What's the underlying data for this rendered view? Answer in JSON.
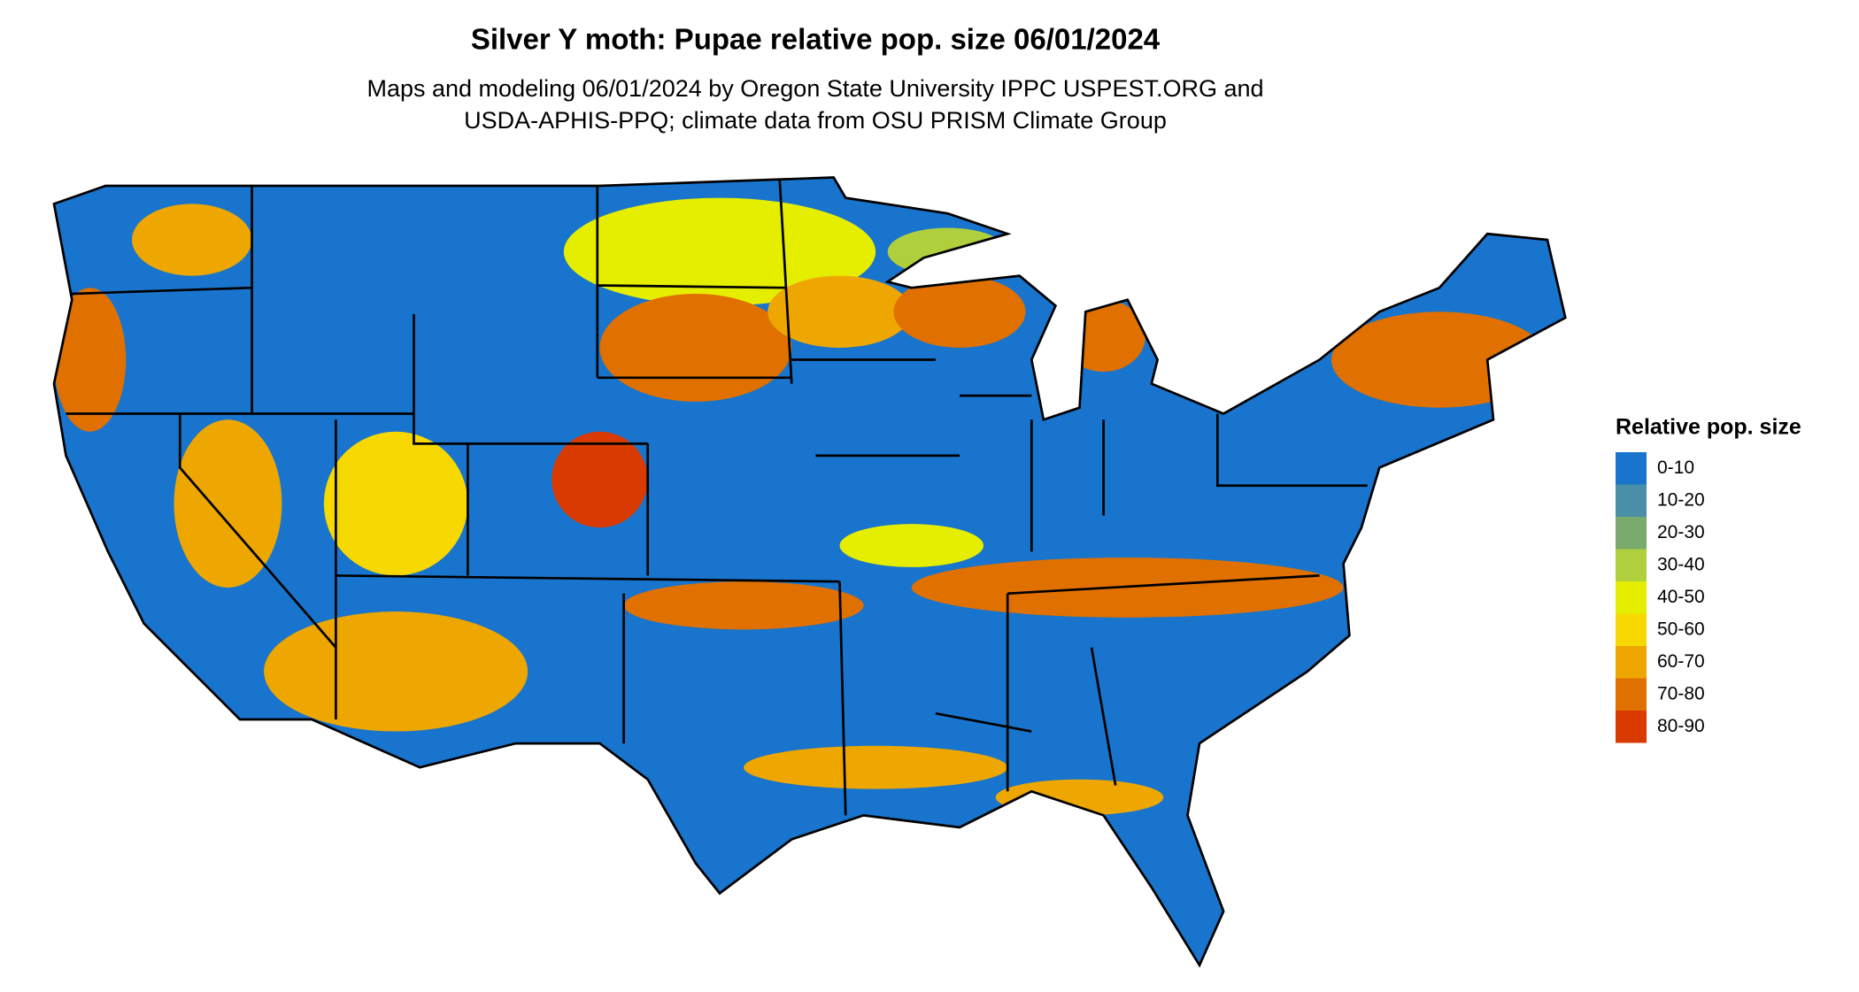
{
  "title": "Silver Y moth: Pupae relative pop. size 06/01/2024",
  "subtitle": [
    "Maps and modeling 06/01/2024 by Oregon State University IPPC USPEST.ORG and",
    "USDA-APHIS-PPQ; climate data from OSU PRISM Climate Group"
  ],
  "legend": {
    "title": "Relative pop. size",
    "items": [
      {
        "label": "0-10",
        "color": "#1874cd"
      },
      {
        "label": "10-20",
        "color": "#4a8fa8"
      },
      {
        "label": "20-30",
        "color": "#78aa6c"
      },
      {
        "label": "30-40",
        "color": "#b0cf3c"
      },
      {
        "label": "40-50",
        "color": "#e6ee00"
      },
      {
        "label": "50-60",
        "color": "#f7d800"
      },
      {
        "label": "60-70",
        "color": "#eea600"
      },
      {
        "label": "70-80",
        "color": "#e07000"
      },
      {
        "label": "80-90",
        "color": "#d83a00"
      }
    ]
  }
}
